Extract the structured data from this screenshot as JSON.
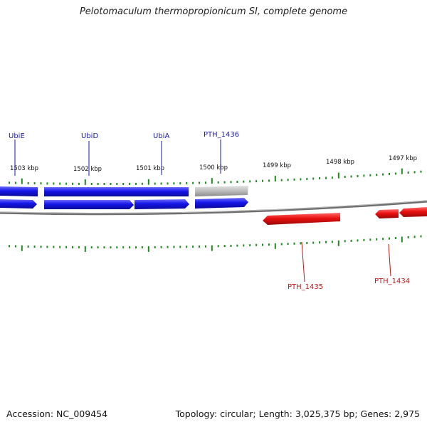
{
  "title": "Pelotomaculum thermopropionicum SI, complete genome",
  "footer": {
    "accession": "Accession: NC_009454",
    "summary": "Topology: circular; Length: 3,025,375 bp; Genes: 2,975"
  },
  "colors": {
    "forward": "#1515e8",
    "reverse": "#ea1010",
    "other": "#bcbcbc",
    "tick": "#1e8a1e",
    "backbone": "#808080",
    "label_forward": "#1a1ab0",
    "label_reverse": "#c01818"
  },
  "ruler_labels": [
    "1503 kbp",
    "1502 kbp",
    "1501 kbp",
    "1500 kbp",
    "1499 kbp",
    "1498 kbp",
    "1497 kbp"
  ],
  "gene_labels": {
    "top": [
      "UbiE",
      "UbiD",
      "UbiA",
      "PTH_1436"
    ],
    "bottom": [
      "PTH_1435",
      "PTH_1434"
    ]
  }
}
